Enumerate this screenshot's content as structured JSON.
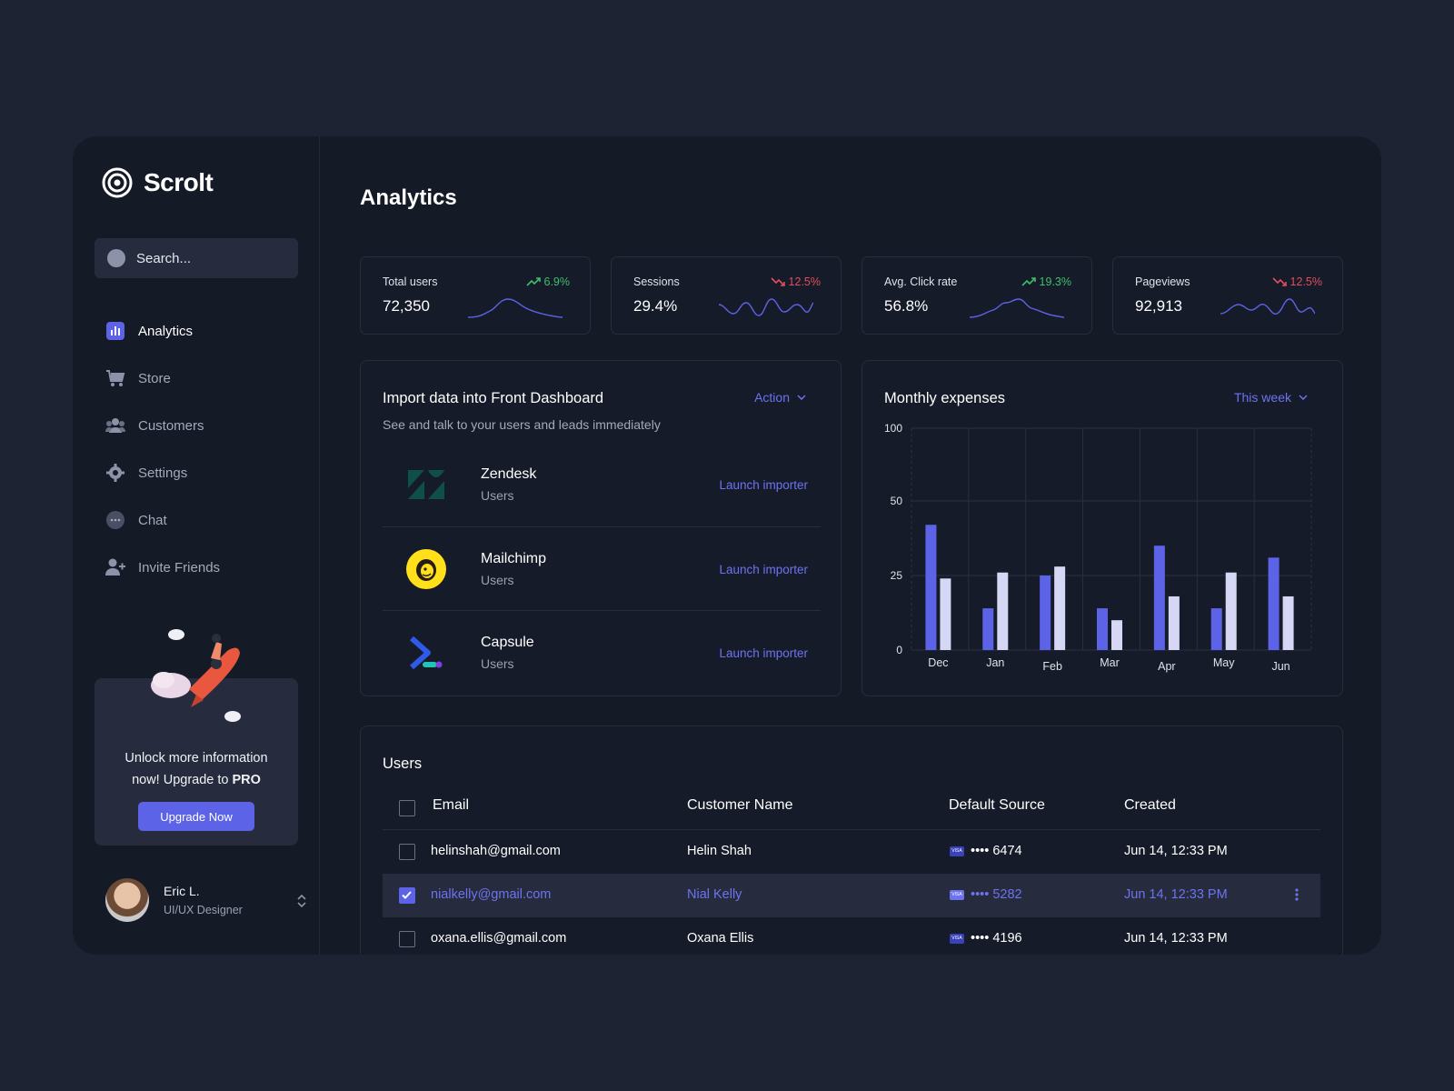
{
  "brand": {
    "name": "Scrolt"
  },
  "search": {
    "placeholder": "Search..."
  },
  "sidebar": {
    "items": [
      {
        "label": "Analytics",
        "icon": "bar-chart-icon"
      },
      {
        "label": "Store",
        "icon": "cart-icon"
      },
      {
        "label": "Customers",
        "icon": "users-icon"
      },
      {
        "label": "Settings",
        "icon": "gear-icon"
      },
      {
        "label": "Chat",
        "icon": "chat-icon"
      },
      {
        "label": "Invite Friends",
        "icon": "add-user-icon"
      }
    ],
    "active": "Analytics"
  },
  "promo": {
    "line1": "Unlock more information",
    "line2_prefix": "now! Upgrade to ",
    "line2_bold": "PRO",
    "button": "Upgrade Now"
  },
  "user": {
    "name": "Eric L.",
    "role": "UI/UX Designer"
  },
  "page": {
    "title": "Analytics"
  },
  "stats": [
    {
      "label": "Total users",
      "value": "72,350",
      "delta": "6.9%",
      "trend": "up"
    },
    {
      "label": "Sessions",
      "value": "29.4%",
      "delta": "12.5%",
      "trend": "down"
    },
    {
      "label": "Avg. Click rate",
      "value": "56.8%",
      "delta": "19.3%",
      "trend": "up"
    },
    {
      "label": "Pageviews",
      "value": "92,913",
      "delta": "12.5%",
      "trend": "down"
    }
  ],
  "import": {
    "title": "Import data into Front Dashboard",
    "subtitle": "See and talk to your users and leads immediately",
    "action": "Action",
    "sources": [
      {
        "name": "Zendesk",
        "type": "Users",
        "link": "Launch importer",
        "icon": "zendesk-logo"
      },
      {
        "name": "Mailchimp",
        "type": "Users",
        "link": "Launch importer",
        "icon": "mailchimp-logo"
      },
      {
        "name": "Capsule",
        "type": "Users",
        "link": "Launch importer",
        "icon": "capsule-logo"
      }
    ]
  },
  "expenses": {
    "title": "Monthly expenses",
    "range": "This week"
  },
  "chart_data": {
    "type": "bar",
    "title": "Monthly expenses",
    "categories": [
      "Dec",
      "Jan",
      "Feb",
      "Mar",
      "Apr",
      "May",
      "Jun"
    ],
    "series": [
      {
        "values": [
          42,
          14,
          25,
          14,
          35,
          14,
          31
        ]
      },
      {
        "values": [
          24,
          26,
          28,
          10,
          18,
          26,
          18
        ]
      }
    ],
    "y_ticks": [
      "100",
      "50",
      "25",
      "0"
    ],
    "colors": [
      "#5c63e6",
      "#d5d7f5"
    ],
    "grid": true
  },
  "users_table": {
    "title": "Users",
    "columns": [
      "Email",
      "Customer Name",
      "Default Source",
      "Created"
    ],
    "rows": [
      {
        "email": "helinshah@gmail.com",
        "name": "Helin Shah",
        "card": "•••• 6474",
        "card_brand": "VISA",
        "created": "Jun 14, 12:33 PM",
        "selected": false
      },
      {
        "email": "nialkelly@gmail.com",
        "name": "Nial Kelly",
        "card": "•••• 5282",
        "card_brand": "VISA",
        "created": "Jun 14, 12:33 PM",
        "selected": true
      },
      {
        "email": "oxana.ellis@gmail.com",
        "name": "Oxana Ellis",
        "card": "•••• 4196",
        "card_brand": "VISA",
        "created": "Jun 14, 12:33 PM",
        "selected": false
      }
    ]
  }
}
